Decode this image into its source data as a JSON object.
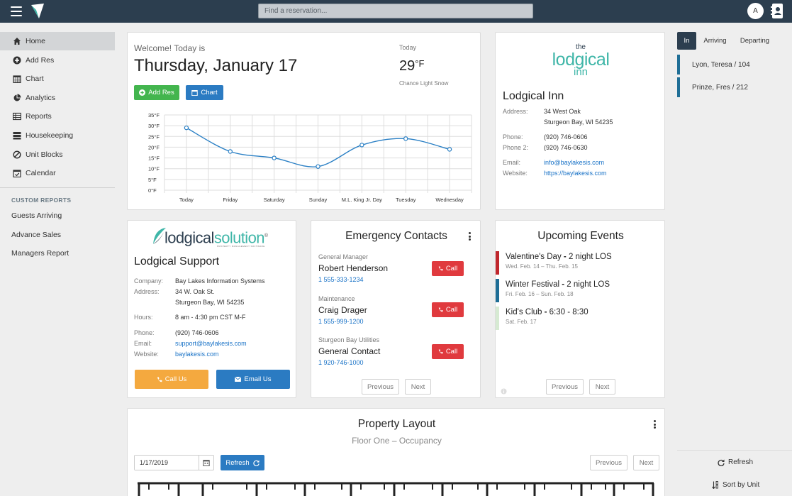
{
  "topbar": {
    "search_placeholder": "Find a reservation...",
    "avatar_initial": "A"
  },
  "sidebar": {
    "items": [
      {
        "label": "Home",
        "icon": "home-icon",
        "active": true
      },
      {
        "label": "Add Res",
        "icon": "plus-circle-icon"
      },
      {
        "label": "Chart",
        "icon": "calendar-grid-icon"
      },
      {
        "label": "Analytics",
        "icon": "pie-chart-icon"
      },
      {
        "label": "Reports",
        "icon": "table-icon"
      },
      {
        "label": "Housekeeping",
        "icon": "server-icon"
      },
      {
        "label": "Unit Blocks",
        "icon": "ban-icon"
      },
      {
        "label": "Calendar",
        "icon": "calendar-check-icon"
      }
    ],
    "custom_reports_heading": "CUSTOM REPORTS",
    "reports": [
      "Guests Arriving",
      "Advance Sales",
      "Managers Report"
    ]
  },
  "welcome": {
    "greeting": "Welcome! Today is",
    "date": "Thursday, January 17",
    "today_label": "Today",
    "temperature": "29",
    "temperature_unit": "°F",
    "conditions": "Chance Light Snow",
    "add_res_label": "Add Res",
    "chart_label": "Chart"
  },
  "chart_data": {
    "type": "line",
    "categories": [
      "Today",
      "Friday",
      "Saturday",
      "Sunday",
      "M.L. King Jr. Day",
      "Tuesday",
      "Wednesday"
    ],
    "values": [
      29,
      18,
      15,
      11,
      21,
      24,
      19
    ],
    "ylim": [
      0,
      35
    ],
    "yticks": [
      "0°F",
      "5°F",
      "10°F",
      "15°F",
      "20°F",
      "25°F",
      "30°F",
      "35°F"
    ],
    "grid": true,
    "color": "#2b80c5"
  },
  "inn": {
    "logo_the": "the",
    "logo_lodgical": "lodgical",
    "logo_inn": "inn",
    "logo_color": "#3fb6a8",
    "name": "Lodgical Inn",
    "address_label": "Address:",
    "address_line1": "34 West Oak",
    "address_line2": "Sturgeon Bay, WI 54235",
    "phone_label": "Phone:",
    "phone": "(920) 746-0606",
    "phone2_label": "Phone 2:",
    "phone2": "(920) 746-0630",
    "email_label": "Email:",
    "email": "info@baylakesis.com",
    "website_label": "Website:",
    "website": "https://baylakesis.com"
  },
  "support": {
    "logo_text_a": "lodgical",
    "logo_text_b": "solution",
    "logo_sub": "PROPERTY MANAGEMENT SOFTWARE",
    "logo_reg": "®",
    "title": "Lodgical Support",
    "company_label": "Company:",
    "company": "Bay Lakes Information Systems",
    "address_label": "Address:",
    "address_line1": "34 W. Oak St.",
    "address_line2": "Sturgeon Bay, WI 54235",
    "hours_label": "Hours:",
    "hours": "8 am - 4:30 pm CST M-F",
    "phone_label": "Phone:",
    "phone": "(920) 746-0606",
    "email_label": "Email:",
    "email": "support@baylakesis.com",
    "website_label": "Website:",
    "website": "baylakesis.com",
    "call_us_label": "Call Us",
    "email_us_label": "Email Us"
  },
  "emergency": {
    "title": "Emergency Contacts",
    "contacts": [
      {
        "role": "General Manager",
        "name": "Robert Henderson",
        "phone": "1 555-333-1234",
        "call_label": "Call"
      },
      {
        "role": "Maintenance",
        "name": "Craig Drager",
        "phone": "1 555-999-1200",
        "call_label": "Call"
      },
      {
        "role": "Sturgeon Bay Utilities",
        "name": "General Contact",
        "phone": "1 920-746-1000",
        "call_label": "Call"
      }
    ],
    "previous_label": "Previous",
    "next_label": "Next"
  },
  "events": {
    "title": "Upcoming Events",
    "items": [
      {
        "name": "Valentine's Day",
        "separator": " - ",
        "detail": "2 night LOS",
        "dates": "Wed. Feb. 14 – Thu. Feb. 15",
        "color": "#c0272d"
      },
      {
        "name": "Winter Festival",
        "separator": " - ",
        "detail": "2 night LOS",
        "dates": "Fri. Feb. 16 – Sun. Feb. 18",
        "color": "#1f6e96"
      },
      {
        "name": "Kid's Club",
        "separator": " - ",
        "detail": "6:30 - 8:30",
        "dates": "Sat. Feb. 17",
        "color": "#d6ead2"
      }
    ],
    "previous_label": "Previous",
    "next_label": "Next"
  },
  "layout": {
    "title": "Property Layout",
    "subtitle": "Floor One – Occupancy",
    "date_value": "1/17/2019",
    "refresh_label": "Refresh",
    "previous_label": "Previous",
    "next_label": "Next"
  },
  "right_panel": {
    "tabs": [
      {
        "label": "In",
        "active": true
      },
      {
        "label": "Arriving"
      },
      {
        "label": "Departing"
      }
    ],
    "guests": [
      "Lyon, Teresa / 104",
      "Prinze, Fres / 212"
    ],
    "refresh_label": "Refresh",
    "sort_label": "Sort by Unit"
  }
}
